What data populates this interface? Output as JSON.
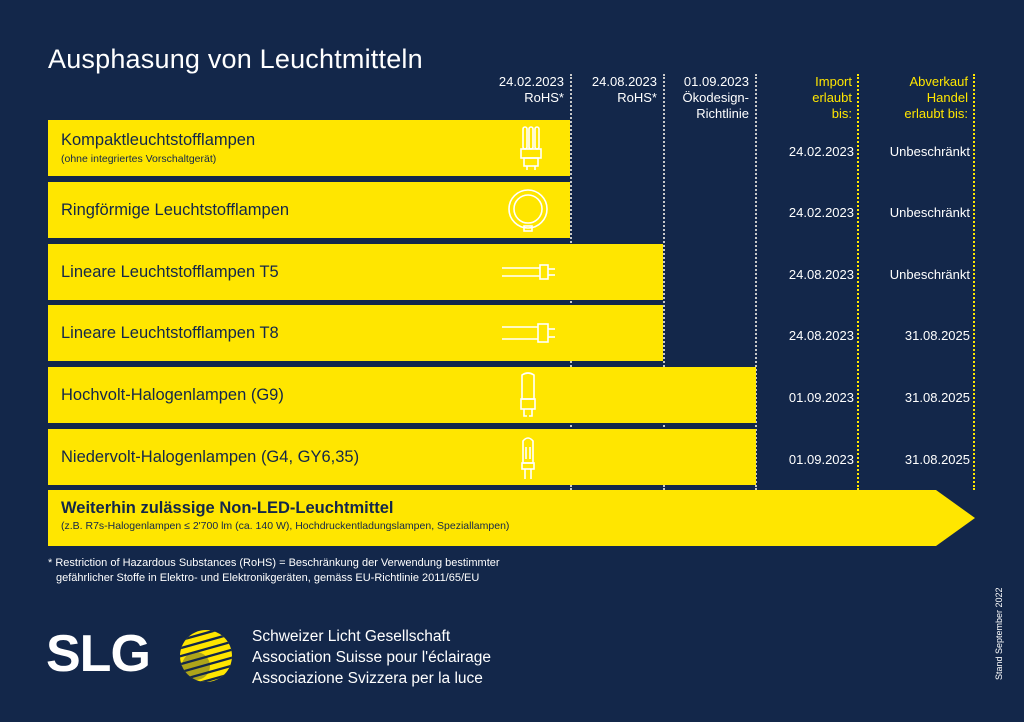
{
  "title": "Ausphasung von Leuchtmitteln",
  "columns": [
    {
      "line1": "24.02.2023",
      "line2": "RoHS*",
      "line3": ""
    },
    {
      "line1": "24.08.2023",
      "line2": "RoHS*",
      "line3": ""
    },
    {
      "line1": "01.09.2023",
      "line2": "Ökodesign-",
      "line3": "Richtlinie"
    },
    {
      "line1": "Import",
      "line2": "erlaubt",
      "line3": "bis:"
    },
    {
      "line1": "Abverkauf",
      "line2": "Handel",
      "line3": "erlaubt bis:"
    }
  ],
  "rows": [
    {
      "name": "Kompaktleuchtstofflampen",
      "sub": "(ohne integriertes Vorschaltgerät)",
      "icon": "compact-lamp-icon",
      "import": "24.02.2023",
      "sale": "Unbeschränkt"
    },
    {
      "name": "Ringförmige Leuchtstofflampen",
      "sub": "",
      "icon": "ring-lamp-icon",
      "import": "24.02.2023",
      "sale": "Unbeschränkt"
    },
    {
      "name": "Lineare Leuchtstofflampen T5",
      "sub": "",
      "icon": "t5-tube-icon",
      "import": "24.08.2023",
      "sale": "Unbeschränkt"
    },
    {
      "name": "Lineare Leuchtstofflampen T8",
      "sub": "",
      "icon": "t8-tube-icon",
      "import": "24.08.2023",
      "sale": "31.08.2025"
    },
    {
      "name": "Hochvolt-Halogenlampen (G9)",
      "sub": "",
      "icon": "g9-halogen-icon",
      "import": "01.09.2023",
      "sale": "31.08.2025"
    },
    {
      "name": "Niedervolt-Halogenlampen (G4, GY6,35)",
      "sub": "",
      "icon": "g4-halogen-icon",
      "import": "01.09.2023",
      "sale": "31.08.2025"
    }
  ],
  "allowed": {
    "name": "Weiterhin zulässige Non-LED-Leuchtmittel",
    "sub": "(z.B. R7s-Halogenlampen ≤ 2'700 lm (ca. 140 W), Hochdruckentladungslampen, Speziallampen)"
  },
  "footnote": {
    "line1": "* Restriction of Hazardous Substances (RoHS) = Beschränkung der Verwendung bestimmter",
    "line2": "gefährlicher Stoffe in Elektro- und Elektronikgeräten, gemäss EU-Richtlinie 2011/65/EU"
  },
  "stand": "Stand September 2022",
  "logo": {
    "text": "SLG",
    "org_de": "Schweizer Licht Gesellschaft",
    "org_fr": "Association Suisse pour l'éclairage",
    "org_it": "Associazione Svizzera per la luce"
  },
  "colors": {
    "background": "#13274a",
    "bar": "#ffe600",
    "text": "#ffffff"
  }
}
